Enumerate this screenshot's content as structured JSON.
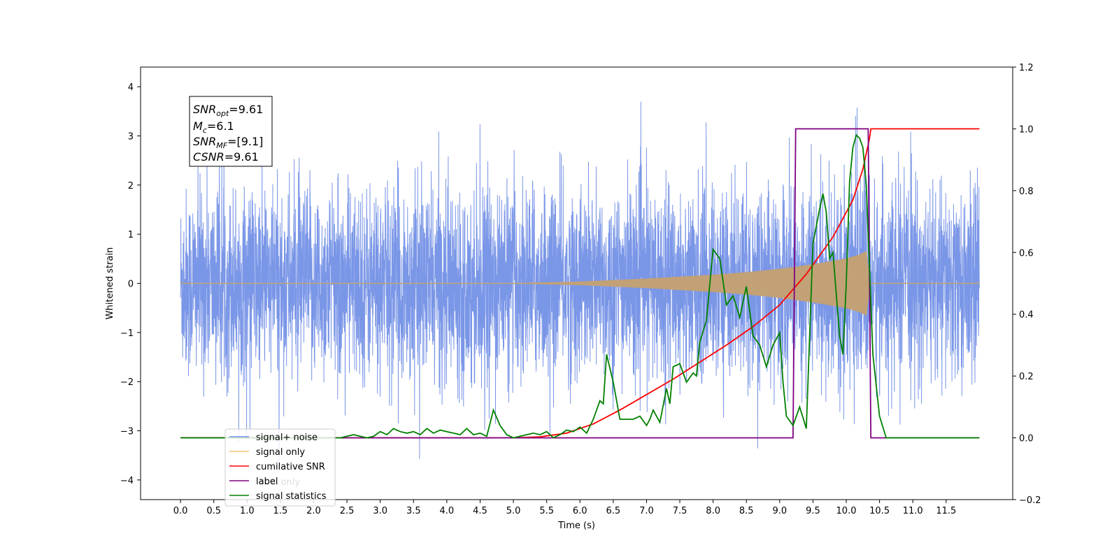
{
  "chart_data": {
    "type": "line",
    "xlabel": "Time (s)",
    "ylabel": "Whitened strain",
    "xlim": [
      -0.6,
      12.5
    ],
    "ylim": [
      -4.4,
      4.4
    ],
    "y2lim": [
      -0.2,
      1.2
    ],
    "x_ticks": [
      "0.0",
      "0.5",
      "1.0",
      "1.5",
      "2.0",
      "2.5",
      "3.0",
      "3.5",
      "4.0",
      "4.5",
      "5.0",
      "5.5",
      "6.0",
      "6.5",
      "7.0",
      "7.5",
      "8.0",
      "8.5",
      "9.0",
      "9.5",
      "10.0",
      "10.5",
      "11.0",
      "11.5"
    ],
    "y_ticks": [
      "−4",
      "−3",
      "−2",
      "−1",
      "0",
      "1",
      "2",
      "3",
      "4"
    ],
    "y2_ticks": [
      "−0.2",
      "0.0",
      "0.2",
      "0.4",
      "0.6",
      "0.8",
      "1.0",
      "1.2"
    ],
    "info_box": {
      "snr_opt": {
        "sym": "SNR",
        "sub": "opt",
        "val": "=9.61"
      },
      "mc": {
        "sym": "M",
        "sub": "c",
        "val": "=6.1"
      },
      "snr_mf": {
        "sym": "SNR",
        "sub": "MF",
        "val": "=[9.1]"
      },
      "csnr": {
        "sym": "CSNR",
        "sub": "",
        "val": "=9.61"
      }
    },
    "legend": {
      "placement": "lower-left",
      "entries": [
        {
          "label": "signal+ noise",
          "color": "#7390e6"
        },
        {
          "label": "signal only",
          "color": "#f5c275"
        },
        {
          "label": "cumilative SNR",
          "color": "#ff0000"
        },
        {
          "label": "label",
          "color": "#800080"
        },
        {
          "label": "signal statistics",
          "color": "#008000"
        }
      ],
      "hidden_label": "label only"
    },
    "series": [
      {
        "name": "signal+ noise",
        "axis": "left",
        "color": "#7390e6",
        "description_range": [
          0.0,
          12.0
        ],
        "noise_sigma": 1.0
      },
      {
        "name": "signal only",
        "axis": "left",
        "color": "#c2a176",
        "envelope": {
          "x": [
            0,
            5.0,
            6.0,
            7.0,
            8.0,
            8.5,
            9.0,
            9.5,
            10.0,
            10.2,
            10.3,
            10.33,
            10.36,
            12.0
          ],
          "y": [
            0,
            0.0,
            0.03,
            0.09,
            0.17,
            0.22,
            0.29,
            0.38,
            0.5,
            0.58,
            0.65,
            0.3,
            0,
            0
          ]
        }
      },
      {
        "name": "cumilative SNR",
        "axis": "right",
        "color": "#ff0000",
        "x": [
          0,
          5.0,
          5.4,
          5.8,
          6.2,
          6.6,
          7.0,
          7.4,
          7.8,
          8.2,
          8.6,
          9.0,
          9.4,
          9.8,
          10.1,
          10.25,
          10.35,
          10.37,
          12.0
        ],
        "y": [
          0,
          0.0,
          0.003,
          0.015,
          0.045,
          0.09,
          0.14,
          0.19,
          0.245,
          0.3,
          0.36,
          0.43,
          0.53,
          0.65,
          0.77,
          0.87,
          0.97,
          1.0,
          1.0
        ]
      },
      {
        "name": "label",
        "axis": "right",
        "color": "#800080",
        "x": [
          0,
          9.2,
          9.24,
          10.33,
          10.37,
          12.0
        ],
        "y": [
          0,
          0,
          1.0,
          1.0,
          0,
          0
        ]
      },
      {
        "name": "signal statistics",
        "axis": "right",
        "color": "#008000",
        "x": [
          0,
          2.4,
          2.6,
          2.8,
          2.9,
          3.0,
          3.1,
          3.2,
          3.3,
          3.4,
          3.5,
          3.6,
          3.7,
          3.8,
          3.9,
          4.0,
          4.1,
          4.2,
          4.3,
          4.4,
          4.5,
          4.6,
          4.7,
          4.8,
          4.9,
          5.0,
          5.1,
          5.2,
          5.3,
          5.4,
          5.5,
          5.6,
          5.7,
          5.8,
          5.9,
          6.0,
          6.1,
          6.2,
          6.3,
          6.35,
          6.4,
          6.5,
          6.6,
          6.7,
          6.8,
          6.9,
          7.0,
          7.05,
          7.1,
          7.2,
          7.3,
          7.35,
          7.4,
          7.5,
          7.6,
          7.7,
          7.75,
          7.8,
          7.9,
          8.0,
          8.1,
          8.2,
          8.3,
          8.4,
          8.5,
          8.6,
          8.7,
          8.8,
          8.9,
          9.0,
          9.05,
          9.1,
          9.2,
          9.3,
          9.4,
          9.5,
          9.6,
          9.65,
          9.7,
          9.75,
          9.8,
          9.9,
          9.95,
          10.0,
          10.05,
          10.1,
          10.15,
          10.2,
          10.25,
          10.3,
          10.4,
          10.5,
          10.6,
          10.8,
          12.0
        ],
        "y": [
          0,
          0,
          0.01,
          0.0,
          0.005,
          0.02,
          0.01,
          0.03,
          0.02,
          0.015,
          0.02,
          0.01,
          0.03,
          0.015,
          0.025,
          0.02,
          0.015,
          0.01,
          0.03,
          0.01,
          0.015,
          0.005,
          0.09,
          0.04,
          0.01,
          0.0,
          0.005,
          0.01,
          0.015,
          0.01,
          0.02,
          0.0,
          0.01,
          0.025,
          0.02,
          0.035,
          0.015,
          0.06,
          0.12,
          0.11,
          0.27,
          0.18,
          0.06,
          0.06,
          0.06,
          0.07,
          0.04,
          0.06,
          0.09,
          0.05,
          0.16,
          0.11,
          0.23,
          0.24,
          0.18,
          0.21,
          0.2,
          0.31,
          0.38,
          0.61,
          0.58,
          0.43,
          0.46,
          0.39,
          0.49,
          0.33,
          0.3,
          0.23,
          0.3,
          0.34,
          0.18,
          0.07,
          0.04,
          0.1,
          0.03,
          0.63,
          0.74,
          0.79,
          0.73,
          0.58,
          0.6,
          0.33,
          0.27,
          0.5,
          0.83,
          0.94,
          0.98,
          0.97,
          0.94,
          0.82,
          0.27,
          0.07,
          0.0,
          0.0,
          0.0
        ]
      }
    ]
  }
}
